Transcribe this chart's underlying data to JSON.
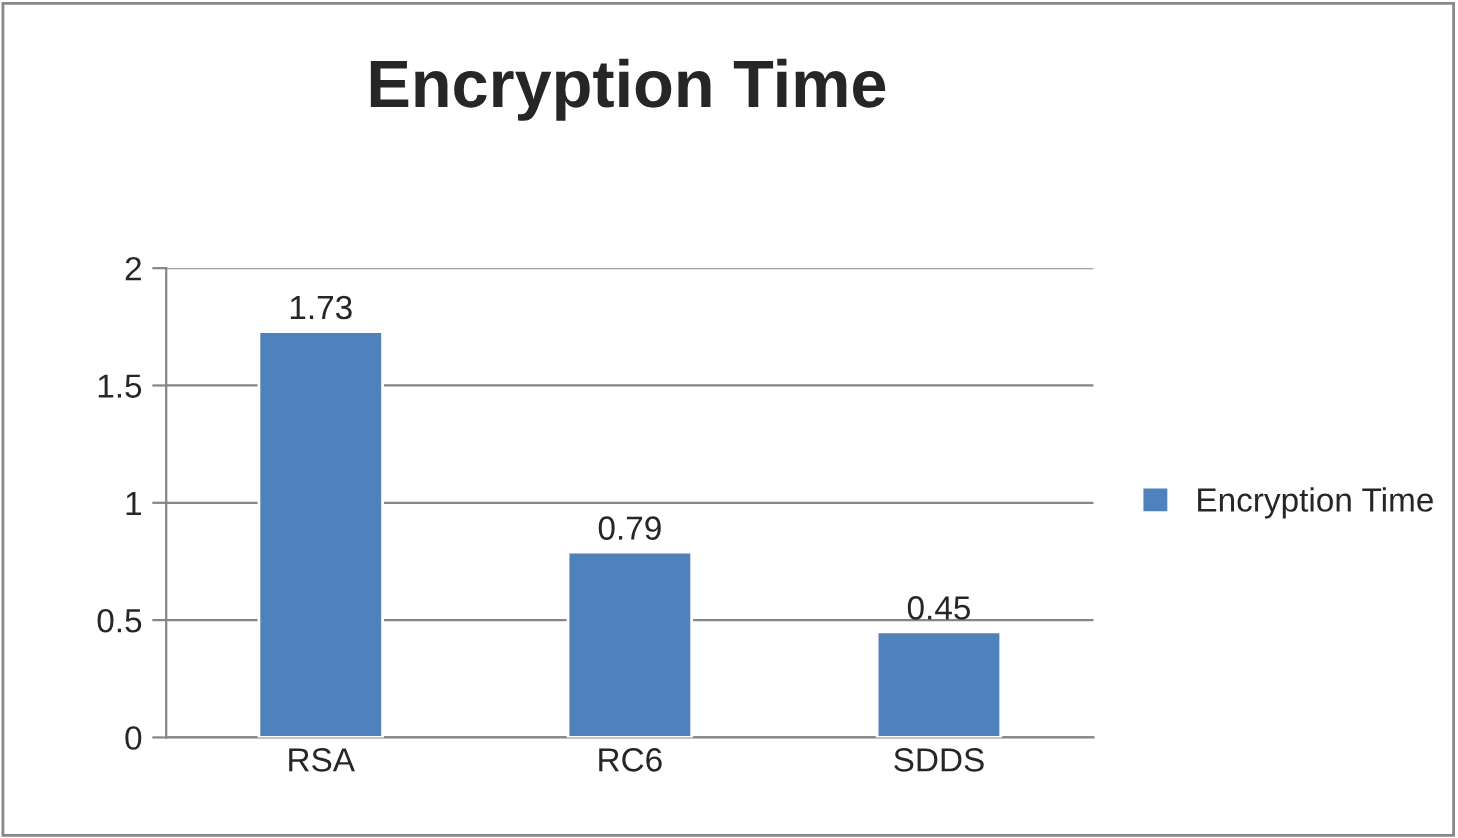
{
  "chart_data": {
    "type": "bar",
    "title": "Encryption Time",
    "categories": [
      "RSA",
      "RC6",
      "SDDS"
    ],
    "series": [
      {
        "name": "Encryption Time",
        "color": "#4f81bd",
        "values": [
          1.73,
          0.79,
          0.45
        ]
      }
    ],
    "ylim": [
      0,
      2
    ],
    "yticks": [
      0,
      {
        "value": 0.5,
        "label": "0.5"
      },
      1,
      {
        "value": 1.5,
        "label": "1.5"
      },
      2
    ],
    "grid": "y",
    "legend": "right",
    "data_labels": true
  }
}
